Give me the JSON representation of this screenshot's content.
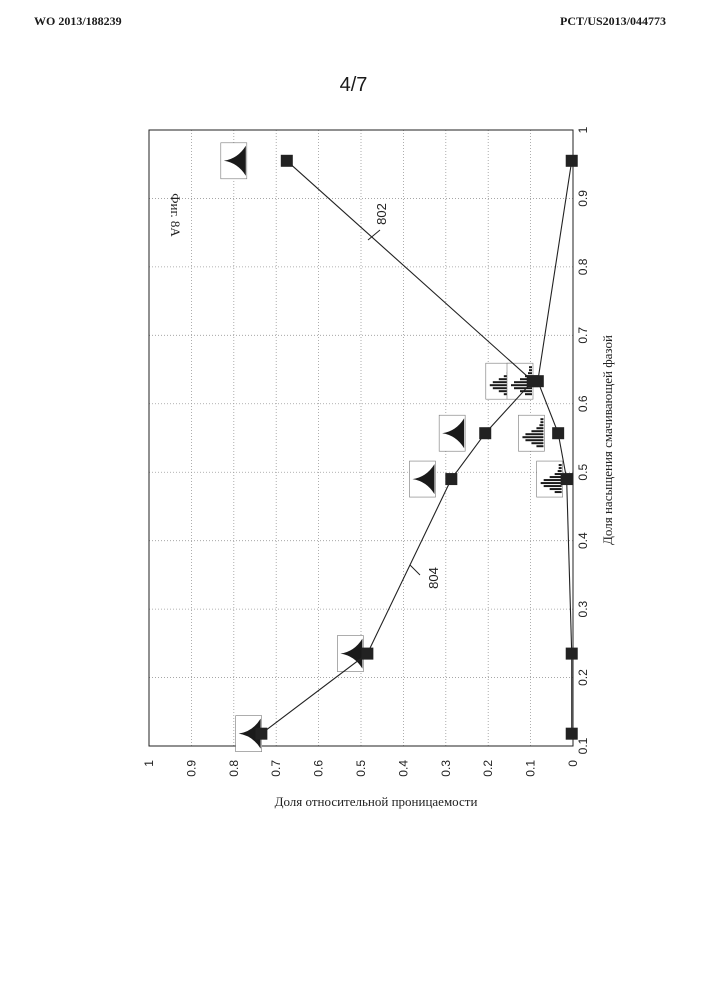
{
  "header": {
    "left": "WO 2013/188239",
    "right": "PCT/US2013/044773"
  },
  "page_number": "4/7",
  "chart_data": {
    "type": "line",
    "title": "Фиг. 8А",
    "xlabel": "Доля насыщения смачивающей фазой",
    "ylabel": "Доля относительной проницаемости",
    "xlim": [
      0.1,
      1.0
    ],
    "ylim": [
      0,
      1.0
    ],
    "x_ticks": [
      "0.1",
      "0.2",
      "0.3",
      "0.4",
      "0.5",
      "0.6",
      "0.7",
      "0.8",
      "0.9",
      "1"
    ],
    "y_ticks": [
      "0",
      "0.1",
      "0.2",
      "0.3",
      "0.4",
      "0.5",
      "0.6",
      "0.7",
      "0.8",
      "0.9",
      "1"
    ],
    "grid": true,
    "series": [
      {
        "name": "802",
        "x": [
          0.118,
          0.235,
          0.49,
          0.557,
          0.633,
          0.955
        ],
        "y": [
          0.003,
          0.003,
          0.015,
          0.035,
          0.083,
          0.003
        ]
      },
      {
        "name": "804",
        "x": [
          0.118,
          0.235,
          0.49,
          0.557,
          0.633,
          0.955
        ],
        "y": [
          0.735,
          0.485,
          0.287,
          0.207,
          0.095,
          0.675
        ]
      }
    ],
    "annotations": [
      "802",
      "804"
    ]
  }
}
